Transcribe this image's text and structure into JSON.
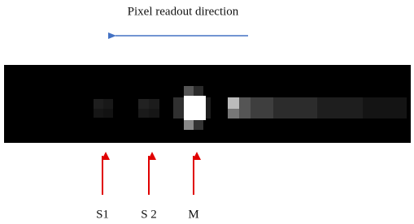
{
  "title": "Pixel readout direction",
  "labels": [
    "S1",
    "S 2",
    "M"
  ]
}
